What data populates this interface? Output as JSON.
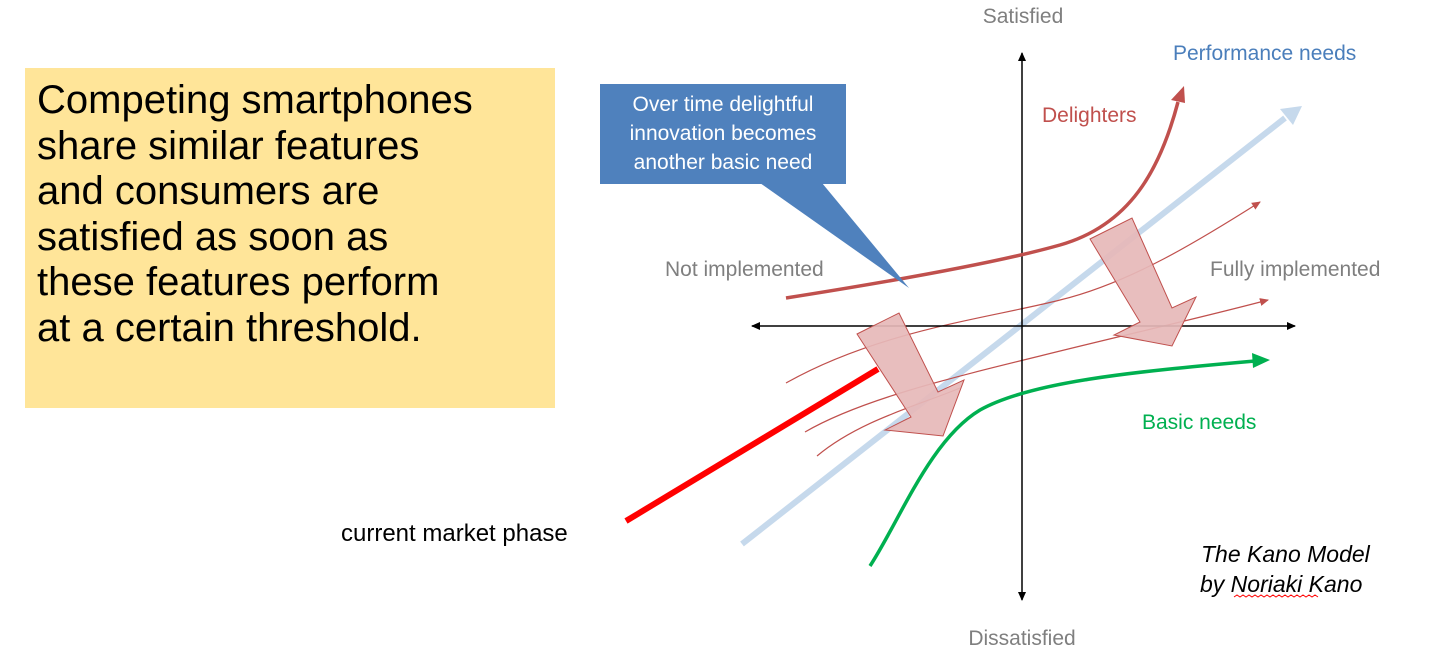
{
  "text_box": {
    "lines": [
      "Competing smartphones",
      "share similar features",
      "and consumers are",
      "satisfied as soon as",
      "these features perform",
      "at a certain threshold."
    ]
  },
  "axes": {
    "top": "Satisfied",
    "bottom": "Dissatisfied",
    "left": "Not implemented",
    "right": "Fully implemented"
  },
  "curves": {
    "performance": {
      "label": "Performance needs",
      "color": "#4a7ebb"
    },
    "delighters": {
      "label": "Delighters",
      "color": "#c0504d"
    },
    "basic": {
      "label": "Basic needs",
      "color": "#00b050"
    }
  },
  "callout": {
    "lines": [
      "Over time delightful",
      "innovation becomes",
      "another basic need"
    ],
    "color": "#4f81bd"
  },
  "market_phase": {
    "label": "current market phase",
    "color": "#ff0000"
  },
  "credit": {
    "line1": "The Kano Model",
    "line2": "by Noriaki Kano"
  }
}
